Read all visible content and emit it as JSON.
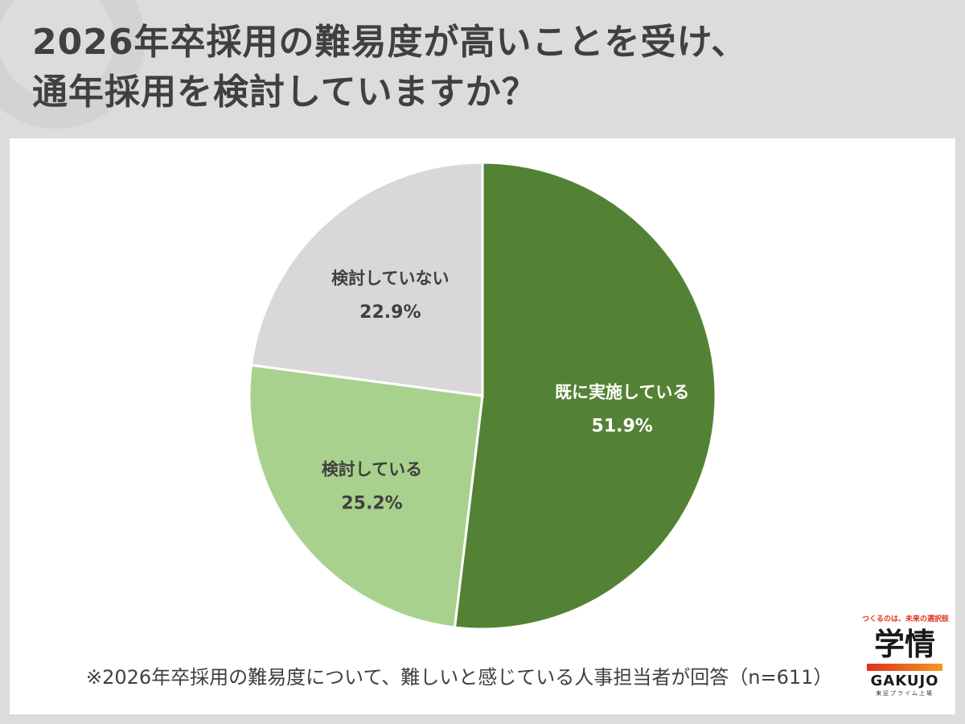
{
  "title": {
    "line1": "2026年卒採用の難易度が高いことを受け、",
    "line2": "通年採用を検討していますか？"
  },
  "chart_data": {
    "type": "pie",
    "start": "top, clockwise",
    "slices": [
      {
        "label": "既に実施している",
        "value": 51.9,
        "display": "51.9%",
        "color": "#548235"
      },
      {
        "label": "検討している",
        "value": 25.2,
        "display": "25.2%",
        "color": "#a9d18e"
      },
      {
        "label": "検討していない",
        "value": 22.9,
        "display": "22.9%",
        "color": "#d9d7da"
      }
    ]
  },
  "note": "※2026年卒採用の難易度について、難しいと感じている人事担当者が回答（n=611）",
  "logo": {
    "tagline": "つくるのは、未来の選択肢",
    "mark": "学情",
    "brand": "GAKUJO",
    "sub": "東証プライム上場"
  }
}
